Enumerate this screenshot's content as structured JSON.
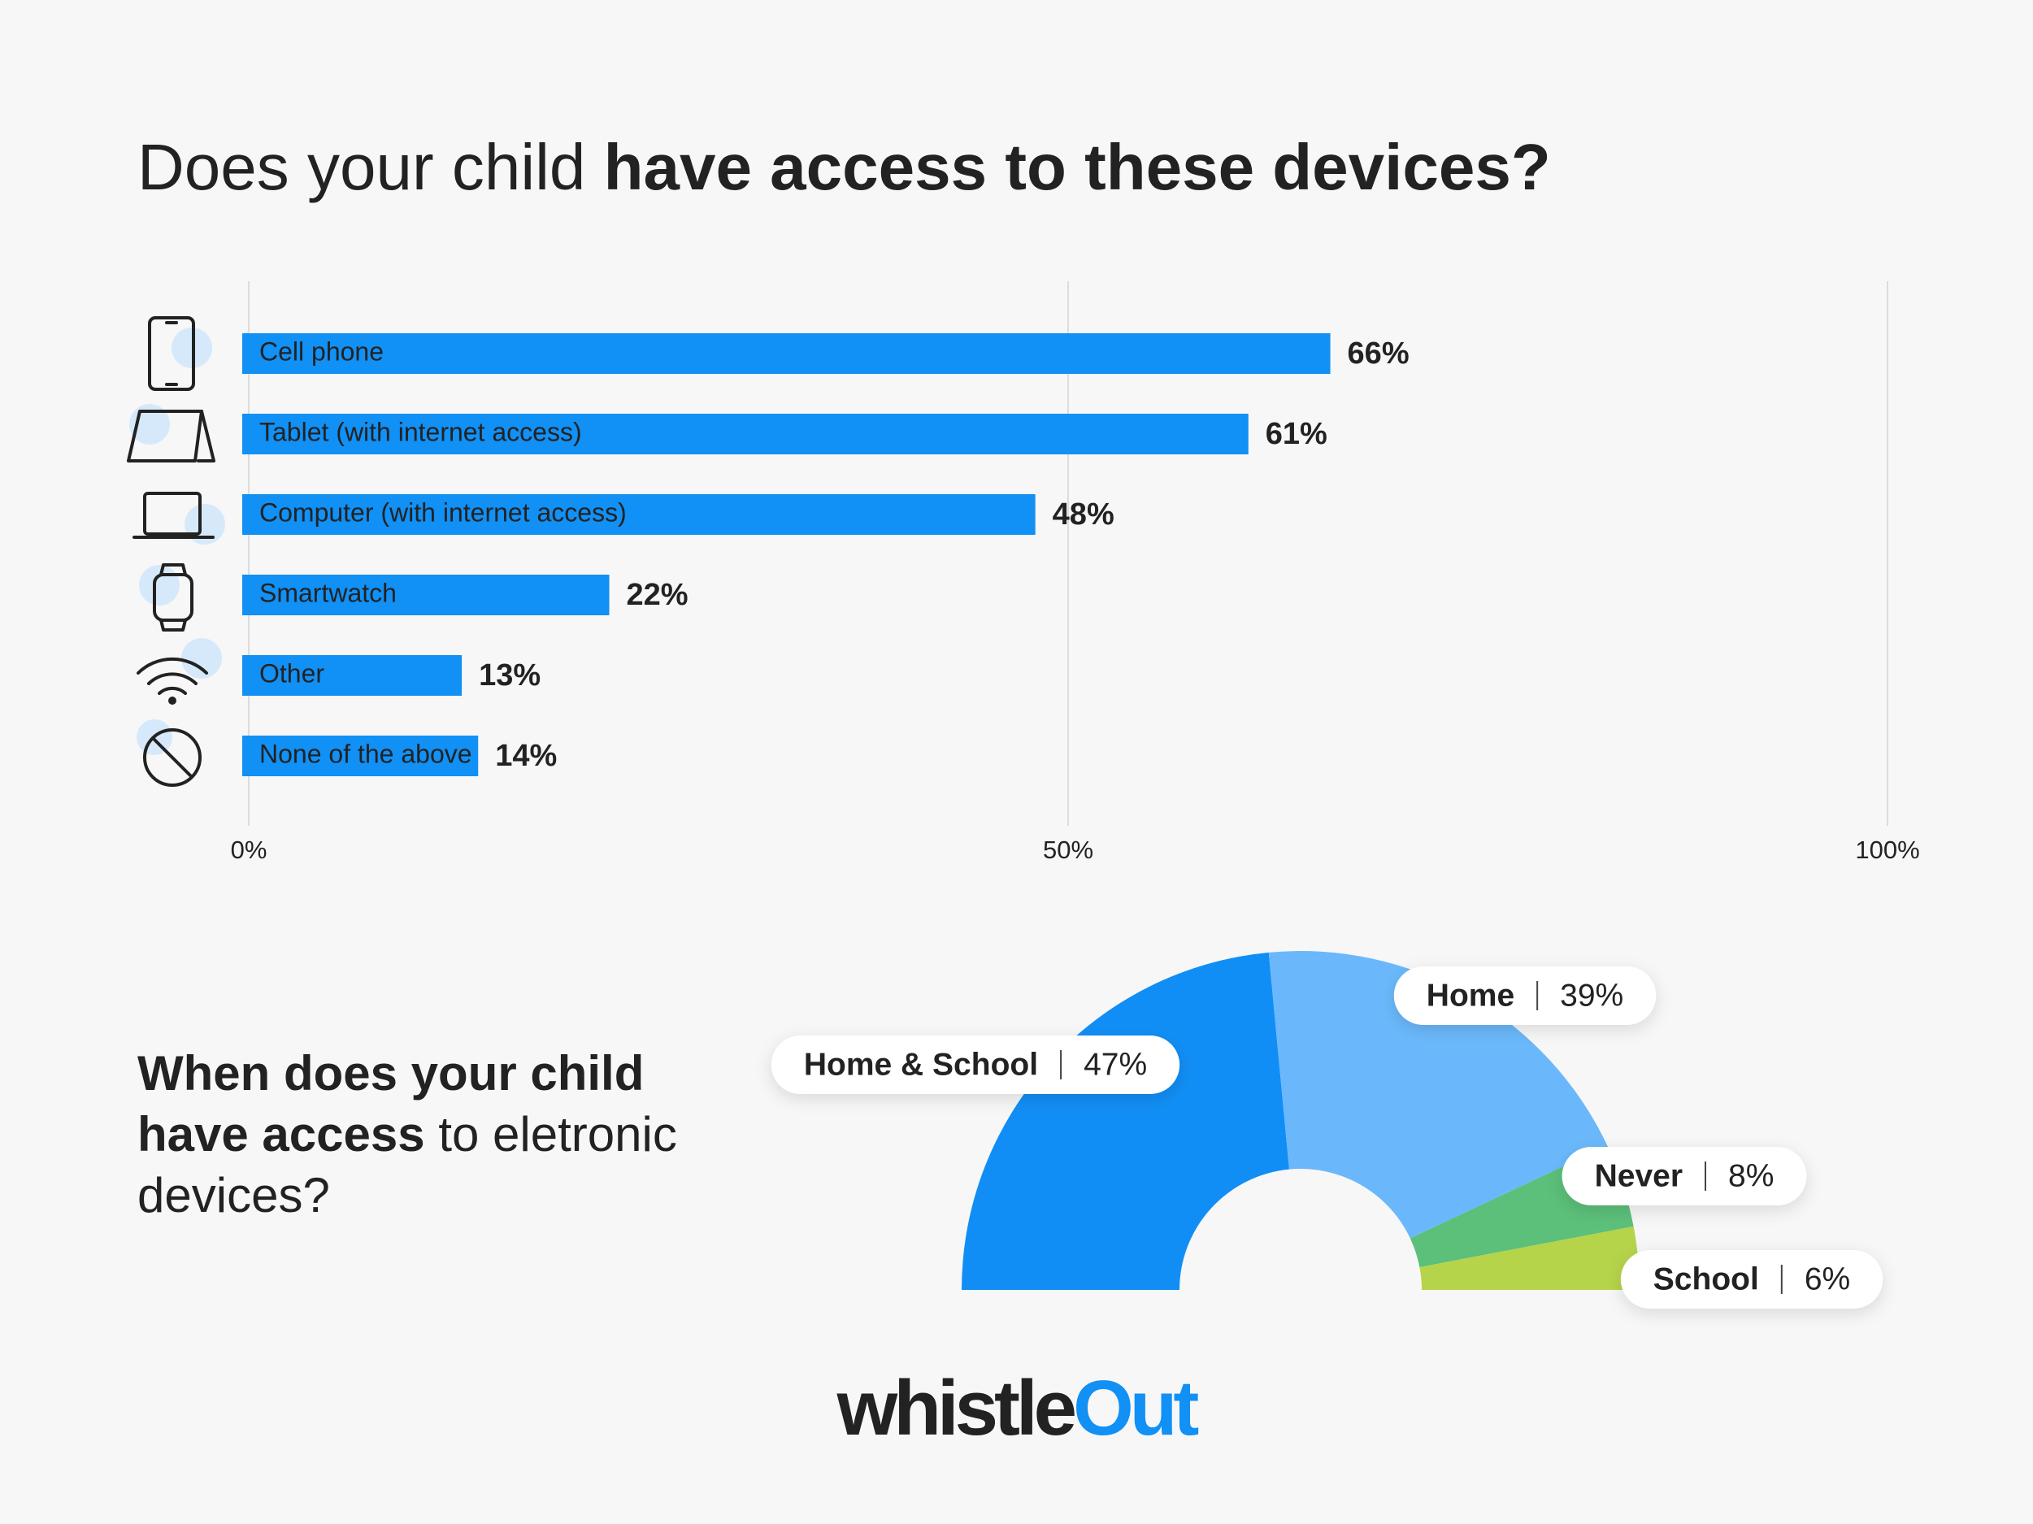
{
  "chart_data": [
    {
      "type": "bar",
      "orientation": "horizontal",
      "title": [
        {
          "text": "Does your child",
          "bold": false
        },
        {
          "text": "have access to these devices?",
          "bold": true
        }
      ],
      "categories": [
        "Cell phone",
        "Tablet (with internet access)",
        "Computer (with internet access)",
        "Smartwatch",
        "Other",
        "None of the above"
      ],
      "values": [
        66,
        61,
        48,
        22,
        13,
        14
      ],
      "value_labels": [
        "66%",
        "61%",
        "48%",
        "22%",
        "13%",
        "14%"
      ],
      "color": "#1190f5",
      "xlim": [
        0,
        100
      ],
      "xticks": [
        {
          "value": 0,
          "label": "0%"
        },
        {
          "value": 50,
          "label": "50%"
        },
        {
          "value": 100,
          "label": "100%"
        }
      ],
      "grid": true
    },
    {
      "type": "half-donut",
      "title": [
        {
          "text": "When does your child",
          "bold": true
        },
        {
          "text": "have access",
          "bold": true
        },
        {
          "text": "to eletronic",
          "bold": false
        },
        {
          "text": "devices?",
          "bold": false
        }
      ],
      "categories": [
        "Home & School",
        "Home",
        "Never",
        "School"
      ],
      "values": [
        47,
        39,
        8,
        6
      ],
      "value_labels": [
        "47%",
        "39%",
        "8%",
        "6%"
      ],
      "colors": [
        "#118ef5",
        "#6ab8fb",
        "#5cbf7a",
        "#b5d44a"
      ]
    }
  ],
  "logo": [
    {
      "text": "whistle",
      "color": "#222222"
    },
    {
      "text": "Out",
      "color": "#1190f5"
    }
  ]
}
